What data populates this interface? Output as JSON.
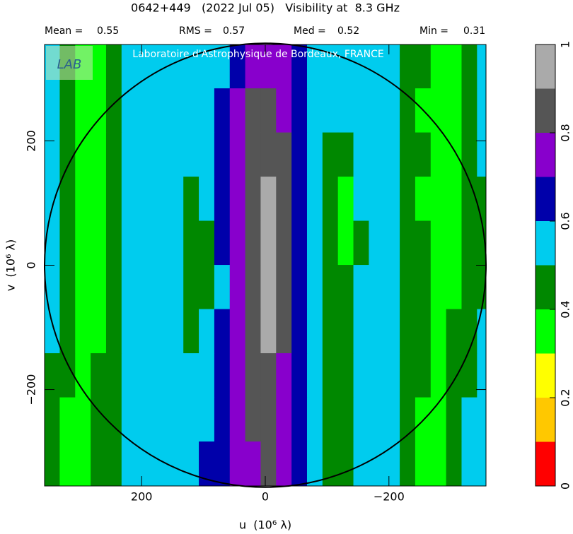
{
  "chart_data": {
    "type": "heatmap",
    "title": "0642+449   (2022 Jul 05)   Visibility at  8.3 GHz",
    "stats": [
      {
        "label": "Mean =",
        "value": 0.55
      },
      {
        "label": "RMS =",
        "value": 0.57
      },
      {
        "label": "Med =",
        "value": 0.52
      },
      {
        "label": "Min =",
        "value": 0.31
      }
    ],
    "watermark": "Laboratoire d'Astrophysique de Bordeaux, FRANCE",
    "logo": "LAB",
    "xlabel": "u  (10⁶ λ)",
    "ylabel": "v  (10⁶ λ)",
    "xlim": [
      357,
      -357
    ],
    "ylim": [
      -355,
      355
    ],
    "xticks": [
      {
        "value": 200,
        "label": "200"
      },
      0,
      {
        "value": -200,
        "label": "−200"
      }
    ],
    "yticks": [
      {
        "value": -200,
        "label": "−200"
      },
      0,
      200
    ],
    "circle_radius": 357,
    "x": [
      345,
      320,
      295,
      270,
      245,
      220,
      195,
      170,
      145,
      120,
      95,
      70,
      45,
      20,
      -5,
      -30,
      -55,
      -80,
      -105,
      -130,
      -155,
      -180,
      -205,
      -230,
      -255,
      -280,
      -305,
      -330,
      -355
    ],
    "y": [
      320,
      249,
      178,
      107,
      36,
      -35,
      -106,
      -177,
      -248,
      -319
    ],
    "z": [
      [
        0.55,
        0.45,
        0.35,
        0.35,
        0.45,
        0.55,
        0.55,
        0.55,
        0.55,
        0.55,
        0.55,
        0.55,
        0.65,
        0.75,
        0.75,
        0.75,
        0.65,
        0.55,
        0.55,
        0.55,
        0.55,
        0.55,
        0.55,
        0.45,
        0.45,
        0.35,
        0.35,
        0.45,
        0.55
      ],
      [
        0.55,
        0.45,
        0.35,
        0.35,
        0.45,
        0.55,
        0.55,
        0.55,
        0.55,
        0.55,
        0.55,
        0.65,
        0.75,
        0.85,
        0.85,
        0.75,
        0.65,
        0.55,
        0.55,
        0.55,
        0.55,
        0.55,
        0.55,
        0.45,
        0.35,
        0.35,
        0.35,
        0.45,
        0.55
      ],
      [
        0.55,
        0.45,
        0.35,
        0.35,
        0.45,
        0.55,
        0.55,
        0.55,
        0.55,
        0.55,
        0.55,
        0.65,
        0.75,
        0.85,
        0.85,
        0.85,
        0.65,
        0.55,
        0.45,
        0.45,
        0.55,
        0.55,
        0.55,
        0.45,
        0.45,
        0.35,
        0.35,
        0.45,
        0.55
      ],
      [
        0.55,
        0.45,
        0.35,
        0.35,
        0.45,
        0.55,
        0.55,
        0.55,
        0.55,
        0.45,
        0.55,
        0.65,
        0.75,
        0.85,
        0.95,
        0.85,
        0.65,
        0.55,
        0.45,
        0.35,
        0.55,
        0.55,
        0.55,
        0.45,
        0.35,
        0.35,
        0.35,
        0.45,
        0.45
      ],
      [
        0.55,
        0.45,
        0.35,
        0.35,
        0.45,
        0.55,
        0.55,
        0.55,
        0.55,
        0.45,
        0.45,
        0.65,
        0.75,
        0.85,
        0.95,
        0.85,
        0.65,
        0.55,
        0.45,
        0.35,
        0.45,
        0.55,
        0.55,
        0.45,
        0.45,
        0.35,
        0.35,
        0.45,
        0.45
      ],
      [
        0.55,
        0.45,
        0.35,
        0.35,
        0.45,
        0.55,
        0.55,
        0.55,
        0.55,
        0.45,
        0.45,
        0.55,
        0.75,
        0.85,
        0.95,
        0.85,
        0.65,
        0.55,
        0.45,
        0.45,
        0.55,
        0.55,
        0.55,
        0.45,
        0.45,
        0.35,
        0.35,
        0.45,
        0.45
      ],
      [
        0.55,
        0.45,
        0.35,
        0.35,
        0.45,
        0.55,
        0.55,
        0.55,
        0.55,
        0.45,
        0.55,
        0.65,
        0.75,
        0.85,
        0.95,
        0.85,
        0.65,
        0.55,
        0.45,
        0.45,
        0.55,
        0.55,
        0.55,
        0.45,
        0.45,
        0.35,
        0.45,
        0.45,
        0.55
      ],
      [
        0.45,
        0.45,
        0.35,
        0.45,
        0.45,
        0.55,
        0.55,
        0.55,
        0.55,
        0.55,
        0.55,
        0.65,
        0.75,
        0.85,
        0.85,
        0.75,
        0.65,
        0.55,
        0.45,
        0.45,
        0.55,
        0.55,
        0.55,
        0.45,
        0.45,
        0.35,
        0.45,
        0.45,
        0.55
      ],
      [
        0.45,
        0.35,
        0.35,
        0.45,
        0.45,
        0.55,
        0.55,
        0.55,
        0.55,
        0.55,
        0.55,
        0.65,
        0.75,
        0.85,
        0.85,
        0.75,
        0.65,
        0.55,
        0.45,
        0.45,
        0.55,
        0.55,
        0.55,
        0.45,
        0.35,
        0.35,
        0.45,
        0.55,
        0.55
      ],
      [
        0.45,
        0.35,
        0.35,
        0.45,
        0.45,
        0.55,
        0.55,
        0.55,
        0.55,
        0.55,
        0.65,
        0.65,
        0.75,
        0.75,
        0.85,
        0.75,
        0.65,
        0.55,
        0.45,
        0.45,
        0.55,
        0.55,
        0.55,
        0.45,
        0.35,
        0.35,
        0.45,
        0.55,
        0.55
      ]
    ],
    "colorbar": {
      "levels": [
        0,
        0.1,
        0.2,
        0.3,
        0.4,
        0.5,
        0.6,
        0.7,
        0.8,
        0.9,
        1
      ],
      "colors": [
        "#ff0000",
        "#ffc800",
        "#ffff00",
        "#00ff00",
        "#008800",
        "#00ccee",
        "#0000aa",
        "#8800cc",
        "#555555",
        "#aaaaaa"
      ],
      "ticks": [
        0,
        0.2,
        0.4,
        0.6,
        0.8,
        1
      ]
    }
  }
}
